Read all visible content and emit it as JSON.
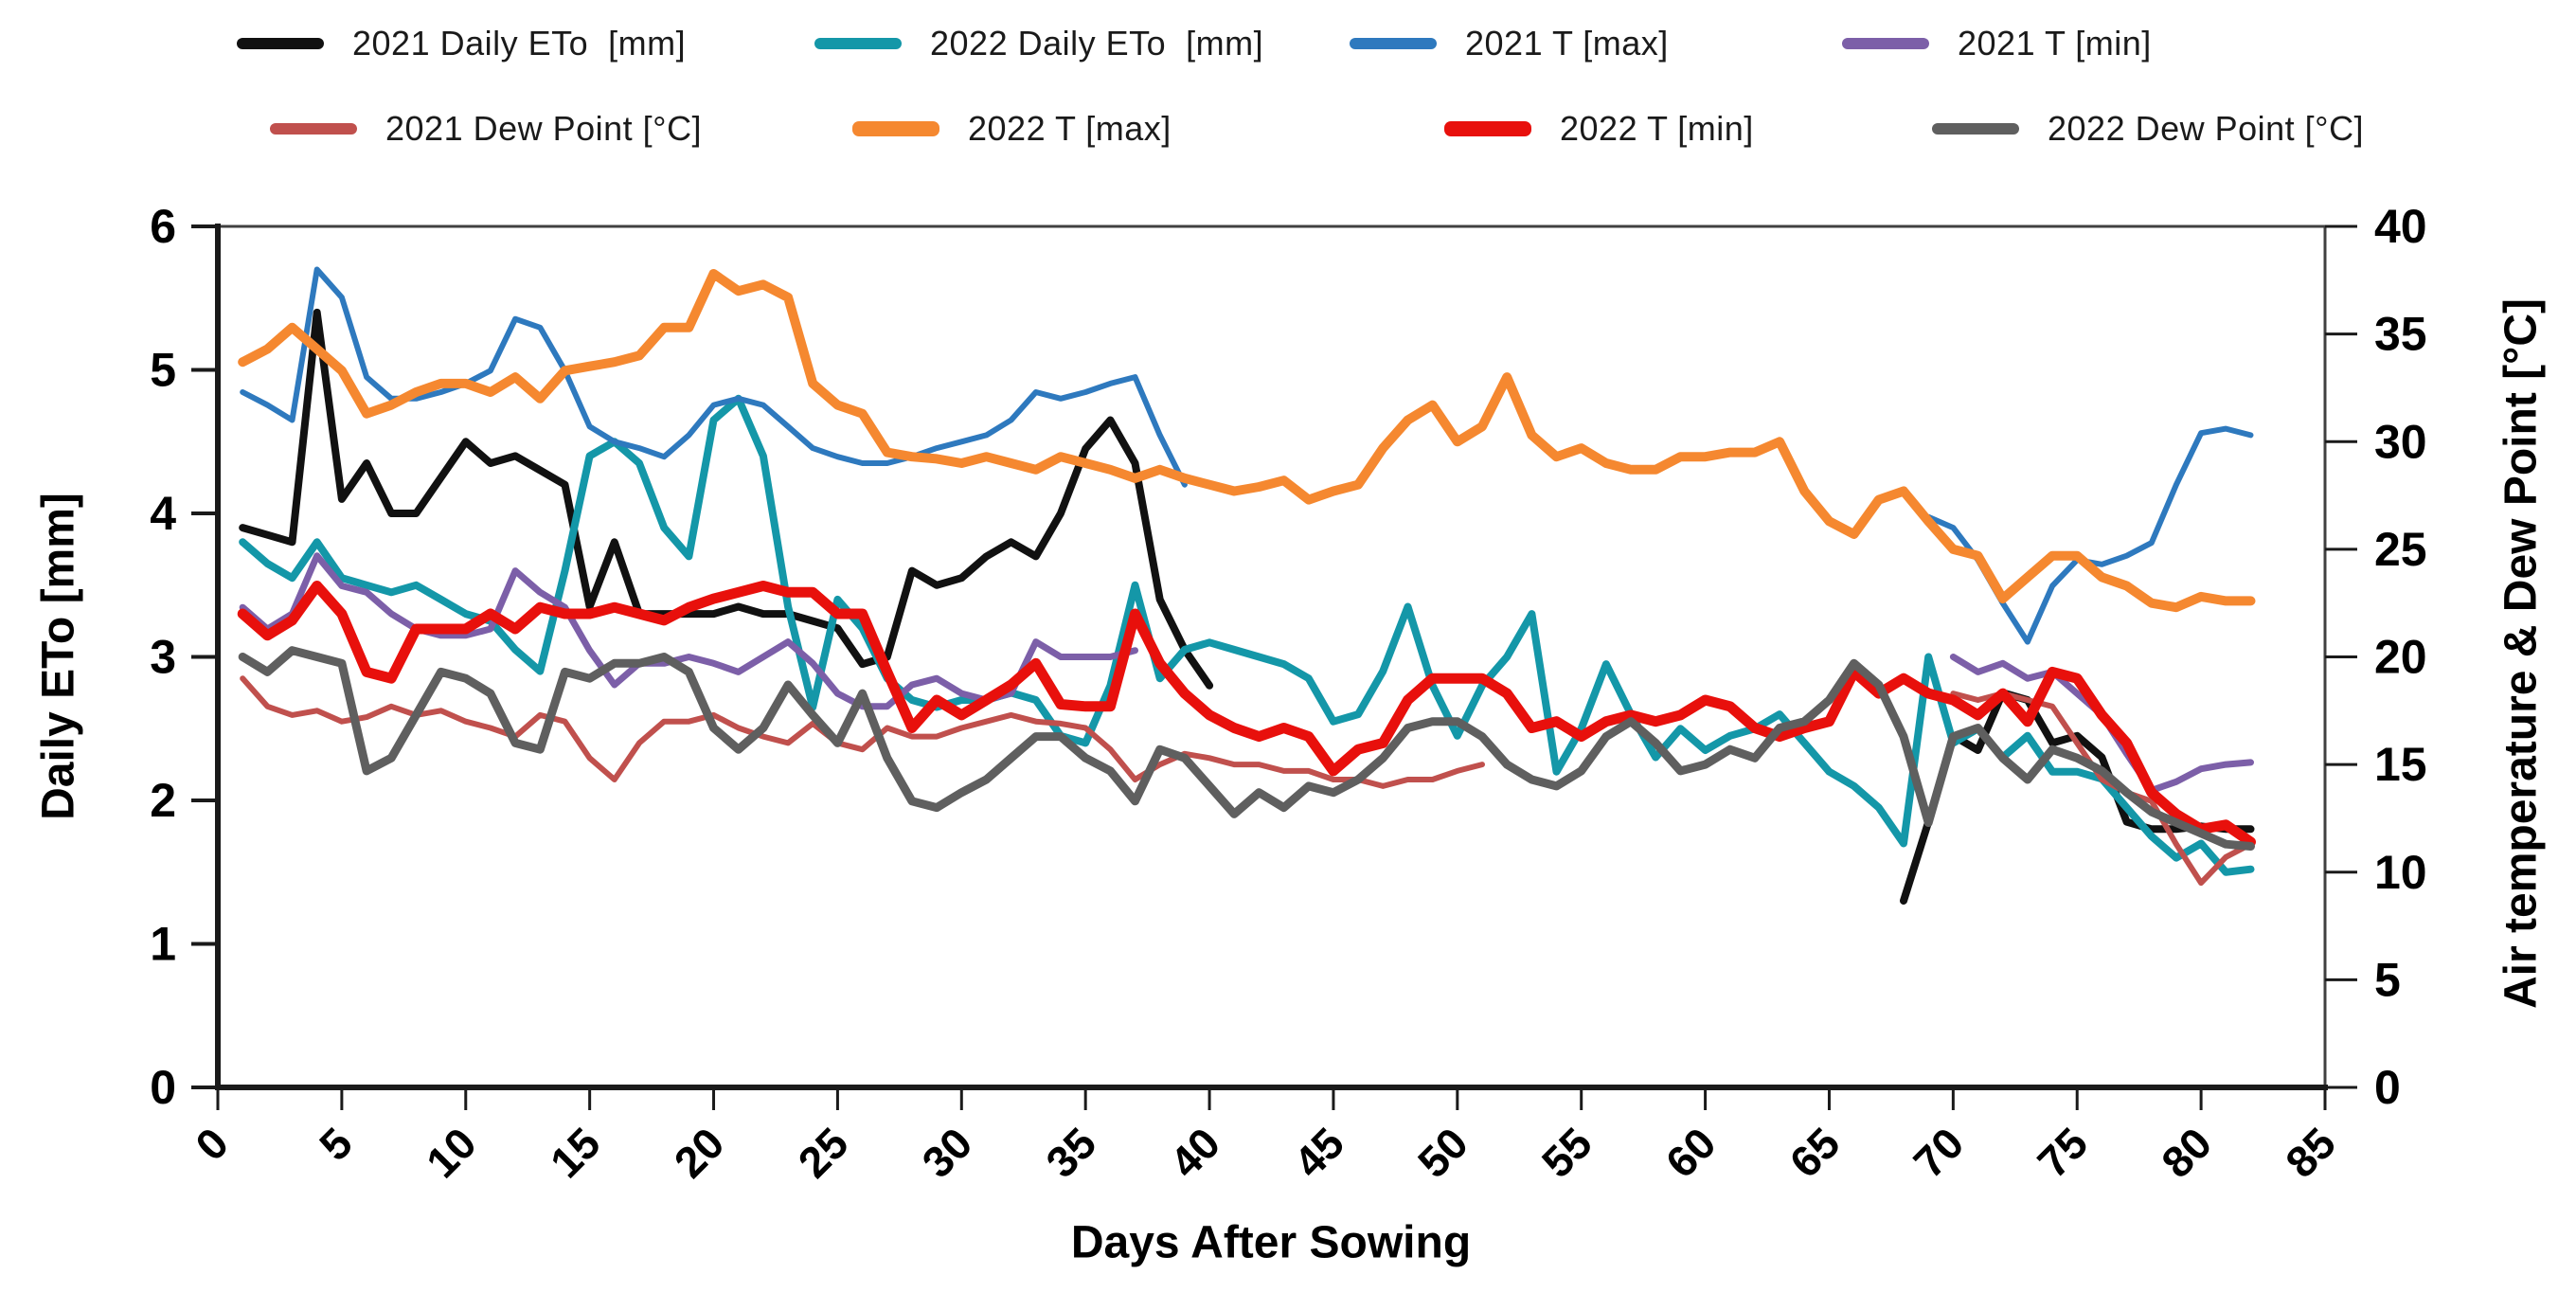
{
  "legend": {
    "row1_lefts": [
      250,
      860,
      1425,
      1945
    ],
    "row2_lefts": [
      285,
      900,
      1525,
      2040
    ]
  },
  "axes": {
    "x": {
      "title": "Days After Sowing",
      "min": 0,
      "max": 85,
      "ticks": [
        0,
        5,
        10,
        15,
        20,
        25,
        30,
        35,
        40,
        45,
        50,
        55,
        60,
        65,
        70,
        75,
        80,
        85
      ]
    },
    "y_left": {
      "title": "Daily ETo [mm]",
      "min": 0,
      "max": 6,
      "ticks": [
        0,
        1,
        2,
        3,
        4,
        5,
        6
      ]
    },
    "y_right": {
      "title": "Air temperature & Dew Point [°C]",
      "min": 0,
      "max": 40,
      "ticks": [
        0,
        5,
        10,
        15,
        20,
        25,
        30,
        35,
        40
      ]
    }
  },
  "chart_data": {
    "type": "line",
    "title": "",
    "xlabel": "Days After Sowing",
    "ylabel_left": "Daily ETo [mm]",
    "ylabel_right": "Air temperature & Dew Point [°C]",
    "xlim": [
      0,
      85
    ],
    "ylim_left": [
      0,
      6
    ],
    "ylim_right": [
      0,
      40
    ],
    "grid": false,
    "legend_position": "top",
    "x": [
      1,
      2,
      3,
      4,
      5,
      6,
      7,
      8,
      9,
      10,
      11,
      12,
      13,
      14,
      15,
      16,
      17,
      18,
      19,
      20,
      21,
      22,
      23,
      24,
      25,
      26,
      27,
      28,
      29,
      30,
      31,
      32,
      33,
      34,
      35,
      36,
      37,
      38,
      39,
      40,
      41,
      42,
      43,
      44,
      45,
      46,
      47,
      48,
      49,
      50,
      51,
      52,
      53,
      54,
      55,
      56,
      57,
      58,
      59,
      60,
      61,
      62,
      63,
      64,
      65,
      66,
      67,
      68,
      69,
      70,
      71,
      72,
      73,
      74,
      75,
      76,
      77,
      78,
      79,
      80,
      81,
      82
    ],
    "series": [
      {
        "id": "eto2021",
        "name": "2021 Daily ETo  [mm]",
        "color": "#111111",
        "width": 8,
        "axis": "left",
        "values": [
          3.9,
          3.85,
          3.8,
          5.4,
          4.1,
          4.35,
          4.0,
          4.0,
          4.25,
          4.5,
          4.35,
          4.4,
          4.3,
          4.2,
          3.35,
          3.8,
          3.3,
          3.3,
          3.3,
          3.3,
          3.35,
          3.3,
          3.3,
          3.25,
          3.2,
          2.95,
          3.0,
          3.6,
          3.5,
          3.55,
          3.7,
          3.8,
          3.7,
          4.0,
          4.45,
          4.65,
          4.35,
          3.4,
          3.05,
          2.8,
          null,
          null,
          null,
          null,
          null,
          null,
          null,
          null,
          null,
          null,
          null,
          null,
          null,
          null,
          null,
          null,
          null,
          null,
          null,
          null,
          null,
          null,
          null,
          null,
          null,
          null,
          null,
          1.3,
          1.85,
          2.45,
          2.35,
          2.75,
          2.7,
          2.4,
          2.45,
          2.3,
          1.85,
          1.8,
          1.8,
          1.82,
          1.8,
          1.8
        ]
      },
      {
        "id": "eto2022",
        "name": "2022 Daily ETo  [mm]",
        "color": "#1497A8",
        "width": 8,
        "axis": "left",
        "values": [
          3.8,
          3.65,
          3.55,
          3.8,
          3.55,
          3.5,
          3.45,
          3.5,
          3.4,
          3.3,
          3.25,
          3.05,
          2.9,
          3.6,
          4.4,
          4.5,
          4.35,
          3.9,
          3.7,
          4.65,
          4.8,
          4.4,
          3.35,
          2.65,
          3.4,
          3.2,
          2.85,
          2.7,
          2.65,
          2.7,
          2.7,
          2.75,
          2.7,
          2.45,
          2.4,
          2.8,
          3.5,
          2.85,
          3.05,
          3.1,
          3.05,
          3.0,
          2.95,
          2.85,
          2.55,
          2.6,
          2.9,
          3.35,
          2.8,
          2.45,
          2.8,
          3.0,
          3.3,
          2.2,
          2.5,
          2.95,
          2.6,
          2.3,
          2.5,
          2.35,
          2.45,
          2.5,
          2.6,
          2.4,
          2.2,
          2.1,
          1.95,
          1.7,
          3.0,
          2.4,
          2.5,
          2.3,
          2.45,
          2.2,
          2.2,
          2.15,
          1.95,
          1.75,
          1.6,
          1.7,
          1.5,
          1.52
        ]
      },
      {
        "id": "tmax2021",
        "name": "2021 T [max]",
        "color": "#2E79BE",
        "width": 6,
        "axis": "right",
        "values": [
          32.3,
          31.7,
          31.0,
          38.0,
          36.7,
          33.0,
          32.0,
          32.0,
          32.3,
          32.7,
          33.3,
          35.7,
          35.3,
          33.3,
          30.7,
          30.0,
          29.7,
          29.3,
          30.3,
          31.7,
          32.0,
          31.7,
          30.7,
          29.7,
          29.3,
          29.0,
          29.0,
          29.3,
          29.7,
          30.0,
          30.3,
          31.0,
          32.3,
          32.0,
          32.3,
          32.7,
          33.0,
          30.3,
          28.0,
          null,
          null,
          null,
          null,
          null,
          null,
          null,
          null,
          null,
          null,
          null,
          null,
          null,
          null,
          null,
          null,
          null,
          null,
          null,
          null,
          null,
          null,
          null,
          null,
          null,
          null,
          null,
          null,
          null,
          26.5,
          26.0,
          24.5,
          22.5,
          20.7,
          23.3,
          24.5,
          24.3,
          24.7,
          25.3,
          28.0,
          30.4,
          30.6,
          30.3
        ]
      },
      {
        "id": "tmin2021",
        "name": "2021 T [min]",
        "color": "#7C5FA8",
        "width": 7,
        "axis": "right",
        "values": [
          22.3,
          21.3,
          22.0,
          24.7,
          23.3,
          23.0,
          22.0,
          21.3,
          21.0,
          21.0,
          21.3,
          24.0,
          23.0,
          22.3,
          20.3,
          18.7,
          19.7,
          19.7,
          20.0,
          19.7,
          19.3,
          20.0,
          20.7,
          19.7,
          18.3,
          17.7,
          17.7,
          18.7,
          19.0,
          18.3,
          18.0,
          18.3,
          20.7,
          20.0,
          20.0,
          20.0,
          20.3,
          null,
          null,
          null,
          null,
          null,
          null,
          null,
          null,
          null,
          null,
          null,
          null,
          null,
          null,
          null,
          null,
          null,
          null,
          null,
          null,
          null,
          null,
          null,
          null,
          null,
          null,
          null,
          null,
          null,
          null,
          null,
          null,
          20.0,
          19.3,
          19.7,
          19.0,
          19.3,
          18.3,
          17.3,
          15.5,
          13.8,
          14.2,
          14.8,
          15.0,
          15.1
        ]
      },
      {
        "id": "dew2021",
        "name": "2021 Dew Point [°C]",
        "color": "#C0504D",
        "width": 6,
        "axis": "right",
        "values": [
          19.0,
          17.7,
          17.3,
          17.5,
          17.0,
          17.2,
          17.7,
          17.3,
          17.5,
          17.0,
          16.7,
          16.3,
          17.3,
          17.0,
          15.3,
          14.3,
          16.0,
          17.0,
          17.0,
          17.3,
          16.7,
          16.3,
          16.0,
          16.9,
          16.0,
          15.7,
          16.7,
          16.3,
          16.3,
          16.7,
          17.0,
          17.3,
          17.0,
          16.9,
          16.7,
          15.7,
          14.3,
          15.0,
          15.5,
          15.3,
          15.0,
          15.0,
          14.7,
          14.7,
          14.3,
          14.3,
          14.0,
          14.3,
          14.3,
          14.7,
          15.0,
          null,
          null,
          null,
          null,
          null,
          null,
          null,
          null,
          null,
          null,
          null,
          null,
          null,
          null,
          null,
          null,
          null,
          null,
          18.3,
          18.0,
          18.3,
          18.0,
          17.7,
          16.0,
          14.3,
          13.7,
          13.3,
          11.3,
          9.5,
          10.7,
          11.3
        ]
      },
      {
        "id": "tmax2022",
        "name": "2022 T [max]",
        "color": "#F58830",
        "width": 10,
        "axis": "right",
        "values": [
          33.7,
          34.3,
          35.3,
          34.3,
          33.3,
          31.3,
          31.7,
          32.3,
          32.7,
          32.7,
          32.3,
          33.0,
          32.0,
          33.3,
          33.5,
          33.7,
          34.0,
          35.3,
          35.3,
          37.8,
          37.0,
          37.3,
          36.7,
          32.7,
          31.7,
          31.3,
          29.5,
          29.3,
          29.2,
          29.0,
          29.3,
          29.0,
          28.7,
          29.3,
          29.0,
          28.7,
          28.3,
          28.7,
          28.3,
          28.0,
          27.7,
          27.9,
          28.2,
          27.3,
          27.7,
          28.0,
          29.7,
          31.0,
          31.7,
          30.0,
          30.7,
          33.0,
          30.3,
          29.3,
          29.7,
          29.0,
          28.7,
          28.7,
          29.3,
          29.3,
          29.5,
          29.5,
          30.0,
          27.7,
          26.3,
          25.7,
          27.3,
          27.7,
          26.3,
          25.0,
          24.7,
          22.7,
          23.7,
          24.7,
          24.7,
          23.7,
          23.3,
          22.5,
          22.3,
          22.8,
          22.6,
          22.6
        ]
      },
      {
        "id": "tmin2022",
        "name": "2022 T [min]",
        "color": "#E8100C",
        "width": 11,
        "axis": "right",
        "values": [
          22.0,
          21.0,
          21.7,
          23.3,
          22.0,
          19.3,
          19.0,
          21.3,
          21.3,
          21.3,
          22.0,
          21.3,
          22.3,
          22.0,
          22.0,
          22.3,
          22.0,
          21.7,
          22.3,
          22.7,
          23.0,
          23.3,
          23.0,
          23.0,
          22.0,
          22.0,
          19.3,
          16.7,
          18.0,
          17.3,
          18.0,
          18.7,
          19.7,
          17.8,
          17.7,
          17.7,
          22.0,
          19.7,
          18.3,
          17.3,
          16.7,
          16.3,
          16.7,
          16.3,
          14.7,
          15.7,
          16.0,
          18.0,
          19.0,
          19.0,
          19.0,
          18.3,
          16.7,
          17.0,
          16.3,
          17.0,
          17.3,
          17.0,
          17.3,
          18.0,
          17.7,
          16.7,
          16.3,
          16.7,
          17.0,
          19.3,
          18.3,
          19.0,
          18.3,
          18.0,
          17.3,
          18.3,
          17.0,
          19.3,
          19.0,
          17.3,
          16.0,
          13.7,
          12.7,
          12.0,
          12.2,
          11.4
        ]
      },
      {
        "id": "dew2022",
        "name": "2022 Dew Point [°C]",
        "color": "#5F5F5F",
        "width": 9,
        "axis": "right",
        "values": [
          20.0,
          19.3,
          20.3,
          20.0,
          19.7,
          14.7,
          15.3,
          17.3,
          19.3,
          19.0,
          18.3,
          16.0,
          15.7,
          19.3,
          19.0,
          19.7,
          19.7,
          20.0,
          19.3,
          16.7,
          15.7,
          16.7,
          18.7,
          17.3,
          16.0,
          18.3,
          15.3,
          13.3,
          13.0,
          13.7,
          14.3,
          15.3,
          16.3,
          16.3,
          15.3,
          14.7,
          13.3,
          15.7,
          15.3,
          14.0,
          12.7,
          13.7,
          13.0,
          14.0,
          13.7,
          14.3,
          15.3,
          16.7,
          17.0,
          17.0,
          16.3,
          15.0,
          14.3,
          14.0,
          14.7,
          16.3,
          17.0,
          16.0,
          14.7,
          15.0,
          15.7,
          15.3,
          16.7,
          17.0,
          18.0,
          19.7,
          18.7,
          16.3,
          12.3,
          16.3,
          16.7,
          15.3,
          14.3,
          15.7,
          15.3,
          14.7,
          13.7,
          12.8,
          12.3,
          11.8,
          11.3,
          11.2
        ]
      }
    ]
  }
}
